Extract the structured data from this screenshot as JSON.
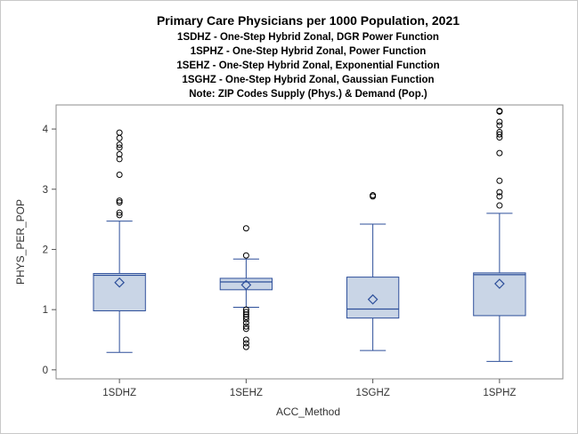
{
  "chart_data": {
    "type": "box",
    "title": "Primary Care Physicians per 1000 Population, 2021",
    "subtitles": [
      "1SDHZ - One-Step Hybrid Zonal, DGR Power Function",
      "1SPHZ - One-Step Hybrid Zonal, Power Function",
      "1SEHZ - One-Step Hybrid Zonal, Exponential Function",
      "1SGHZ - One-Step Hybrid Zonal, Gaussian Function",
      "Note: ZIP Codes Supply (Phys.) & Demand (Pop.)"
    ],
    "xlabel": "ACC_Method",
    "ylabel": "PHYS_PER_POP",
    "ylim": [
      -0.15,
      4.4
    ],
    "yticks": [
      0,
      1,
      2,
      3,
      4
    ],
    "categories": [
      "1SDHZ",
      "1SEHZ",
      "1SGHZ",
      "1SPHZ"
    ],
    "grid": false,
    "colors": {
      "box_fill": "#c9d5e6",
      "box_stroke": "#2d4f9a",
      "outlier": "#000000",
      "frame": "#8c8c8c"
    },
    "boxes": [
      {
        "category": "1SDHZ",
        "whisker_low": 0.29,
        "q1": 0.98,
        "median": 1.57,
        "q3": 1.6,
        "whisker_high": 2.47,
        "mean": 1.45,
        "outliers": [
          2.57,
          2.61,
          2.78,
          2.81,
          3.24,
          3.5,
          3.58,
          3.69,
          3.74,
          3.85,
          3.94
        ]
      },
      {
        "category": "1SEHZ",
        "whisker_low": 1.04,
        "q1": 1.33,
        "median": 1.46,
        "q3": 1.52,
        "whisker_high": 1.84,
        "mean": 1.41,
        "outliers": [
          0.38,
          0.44,
          0.5,
          0.68,
          0.72,
          0.78,
          0.84,
          0.88,
          0.92,
          0.96,
          1.0,
          1.9,
          2.35
        ]
      },
      {
        "category": "1SGHZ",
        "whisker_low": 0.32,
        "q1": 0.86,
        "median": 1.01,
        "q3": 1.54,
        "whisker_high": 2.42,
        "mean": 1.17,
        "outliers": [
          2.88,
          2.9
        ]
      },
      {
        "category": "1SPHZ",
        "whisker_low": 0.14,
        "q1": 0.9,
        "median": 1.58,
        "q3": 1.61,
        "whisker_high": 2.6,
        "mean": 1.43,
        "outliers": [
          2.73,
          2.88,
          2.95,
          3.14,
          3.6,
          3.86,
          3.91,
          3.95,
          4.06,
          4.12,
          4.29,
          4.3
        ]
      }
    ]
  }
}
